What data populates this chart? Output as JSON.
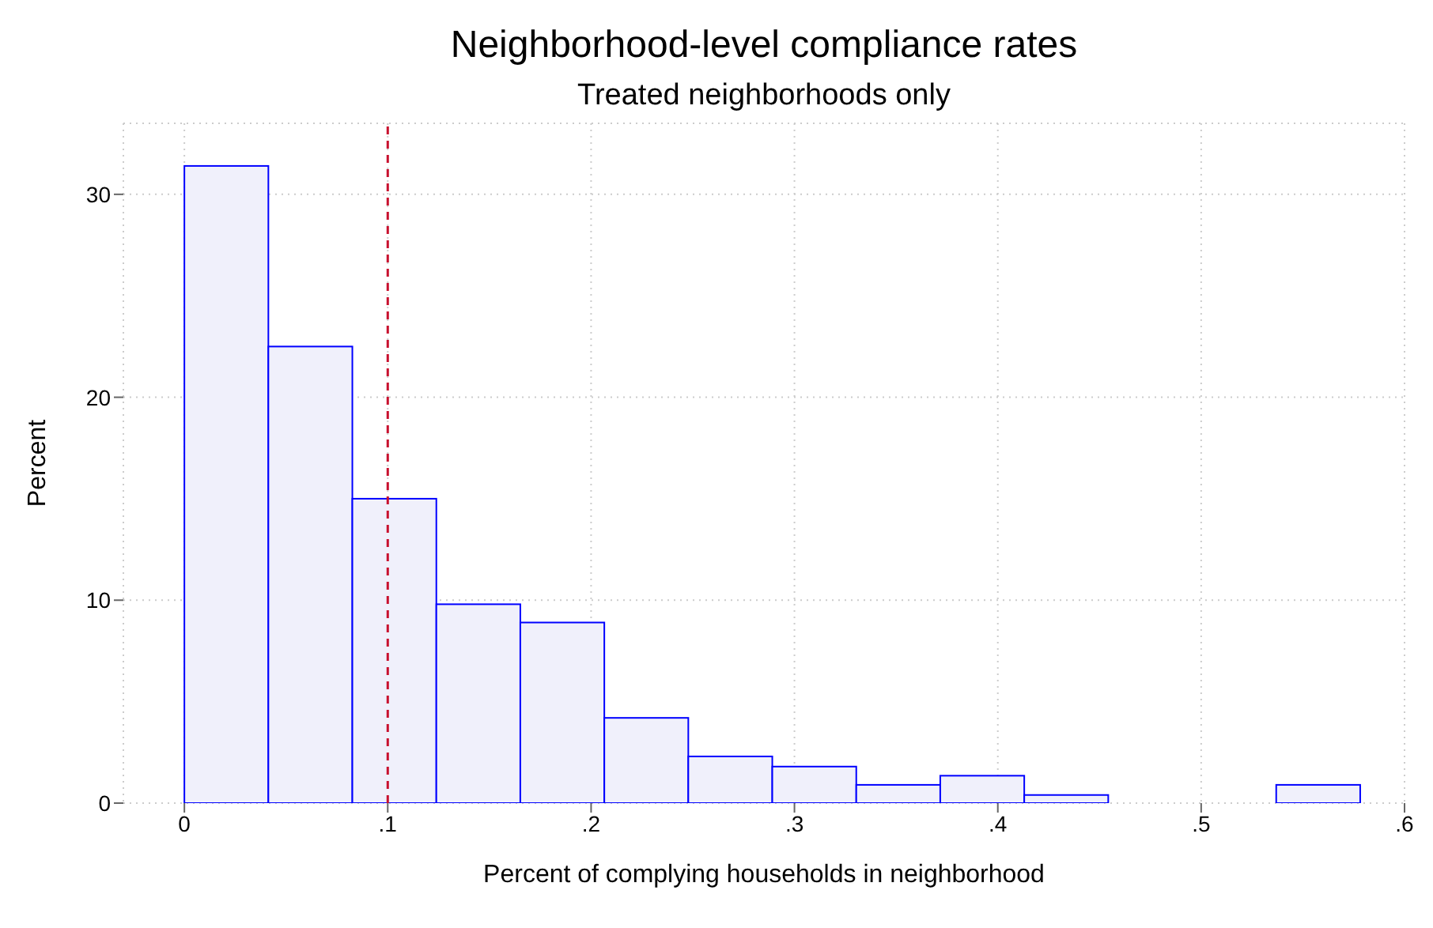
{
  "chart_data": {
    "type": "histogram",
    "title": "Neighborhood-level compliance rates",
    "subtitle": "Treated neighborhoods only",
    "xlabel": "Percent of complying households in neighborhood",
    "ylabel": "Percent",
    "bins": [
      0,
      0.0413,
      0.0826,
      0.1239,
      0.1652,
      0.2065,
      0.2478,
      0.2891,
      0.3304,
      0.3717,
      0.413,
      0.4543,
      0.4956,
      0.5369,
      0.5782
    ],
    "values": [
      31.4,
      22.5,
      15,
      9.8,
      8.9,
      4.2,
      2.3,
      1.8,
      0.9,
      1.35,
      0.4,
      0,
      0,
      0.9
    ],
    "color": "#f0f0fb",
    "xlim": [
      -0.03,
      0.6
    ],
    "xticks": [
      0,
      {
        "value": 0.1,
        "label": ".1"
      },
      {
        "value": 0.2,
        "label": ".2"
      },
      {
        "value": 0.3,
        "label": ".3"
      },
      {
        "value": 0.4,
        "label": ".4"
      },
      {
        "value": 0.5,
        "label": ".5"
      },
      {
        "value": 0.6,
        "label": ".6"
      }
    ],
    "ylim": [
      0,
      33.5
    ],
    "yticks": [
      0,
      10,
      20,
      30
    ],
    "grid": true,
    "ref_lines": [
      {
        "axis": "x",
        "value": 0.1,
        "color": "#c8102e",
        "line_style": "dashed"
      }
    ]
  }
}
